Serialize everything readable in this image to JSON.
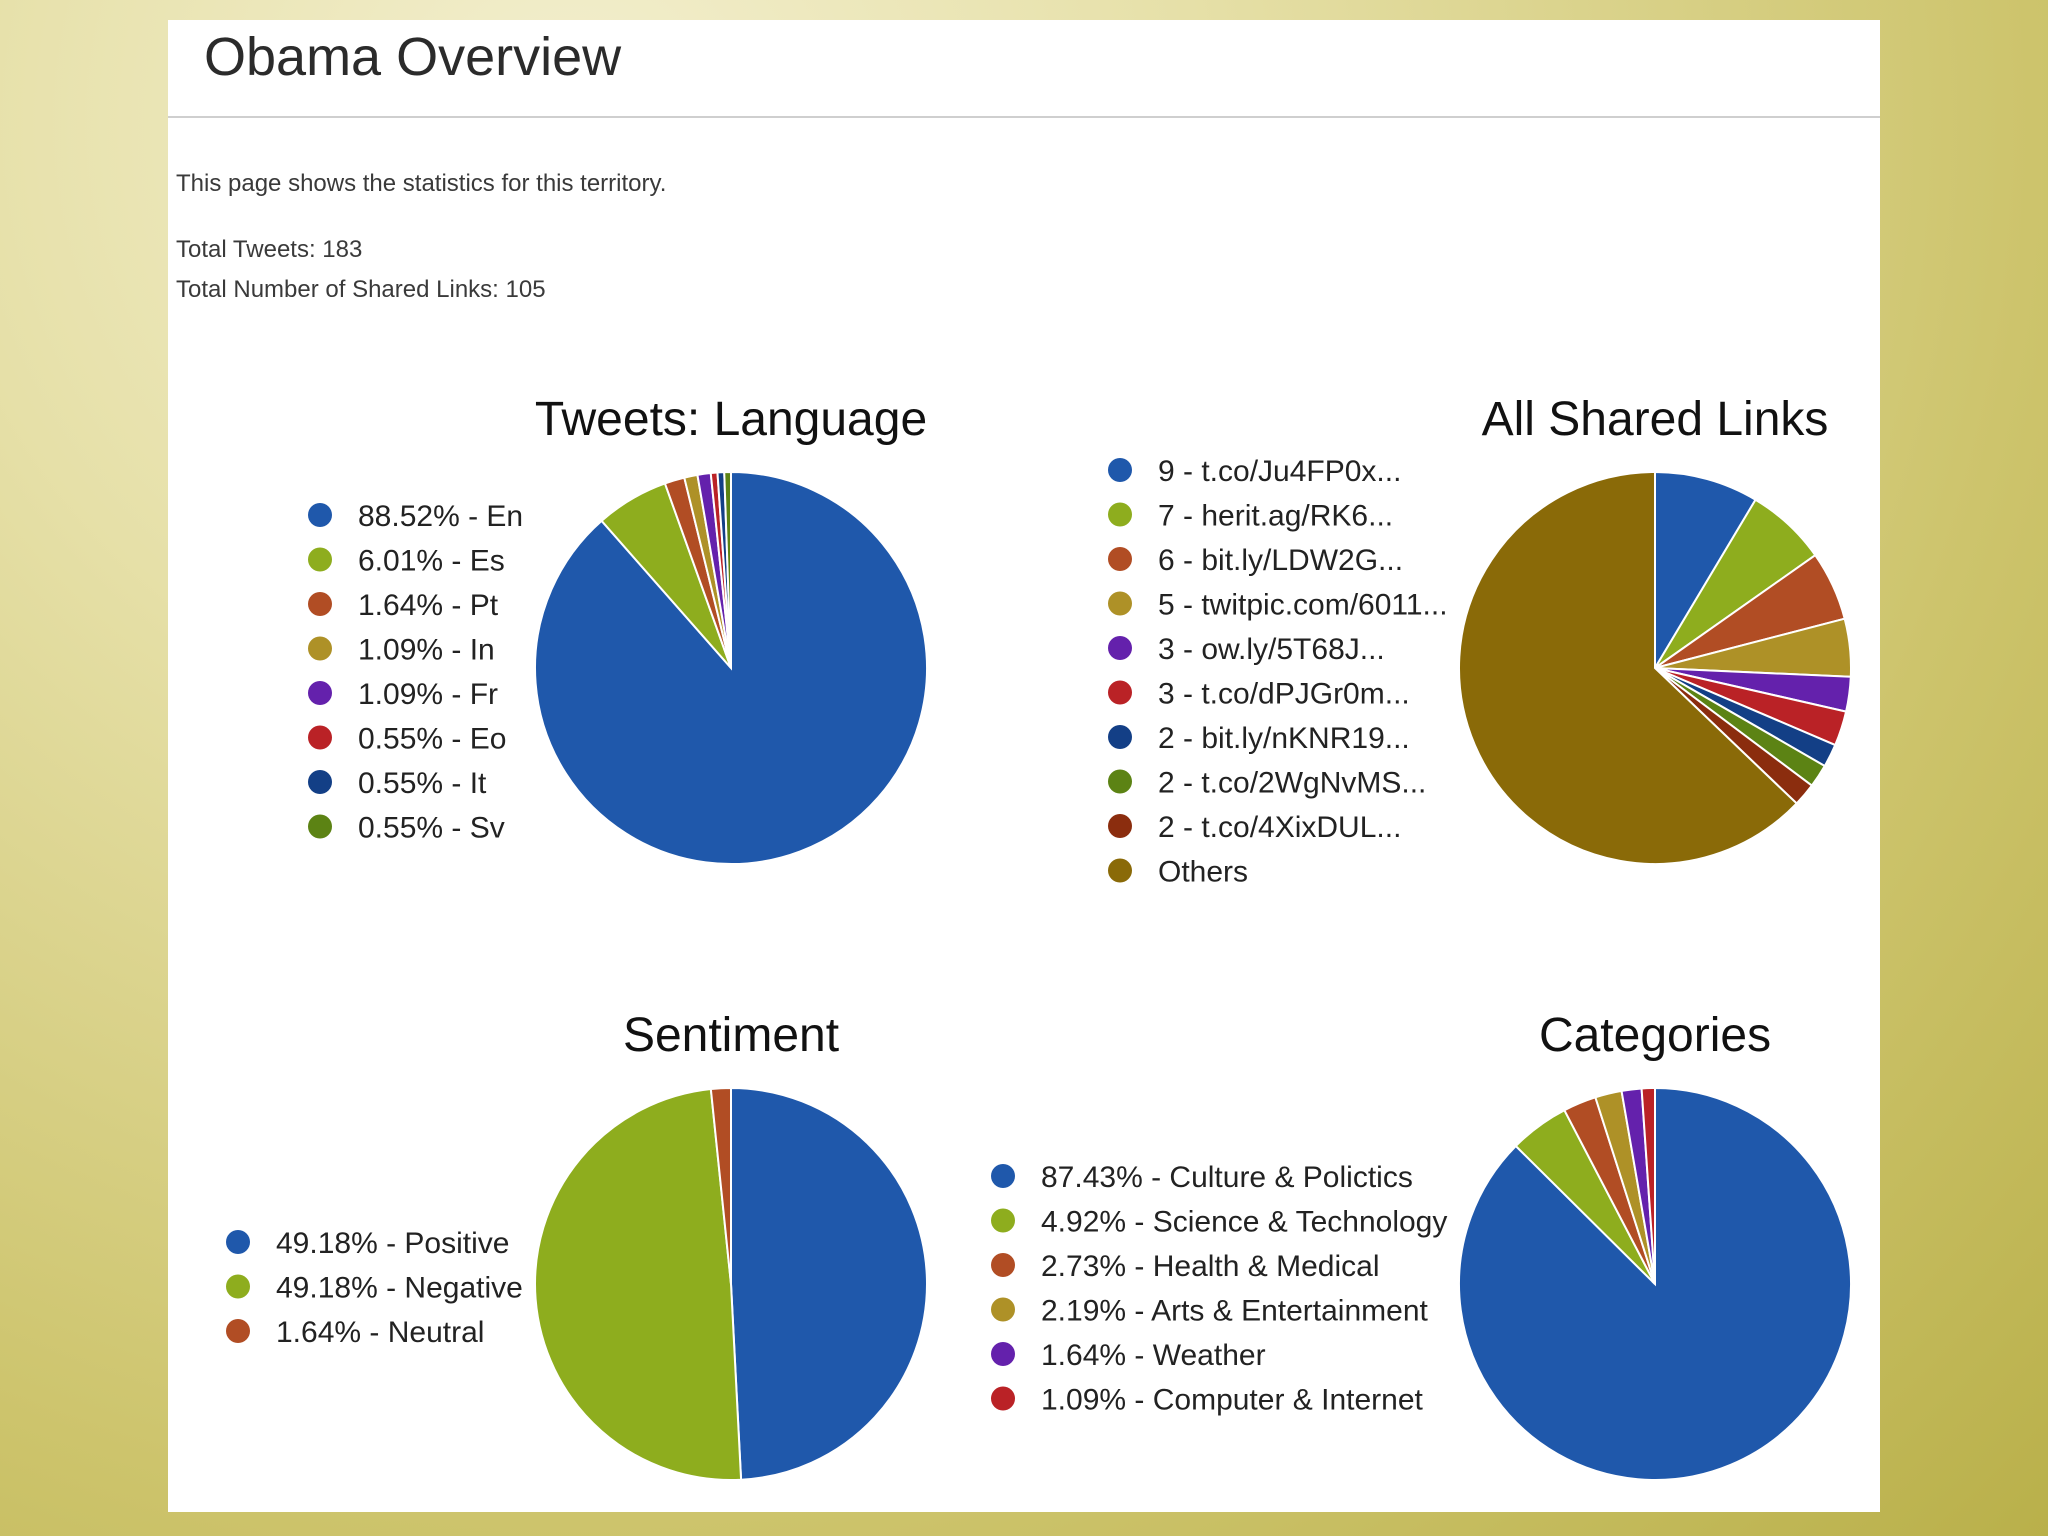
{
  "page": {
    "title": "Obama Overview",
    "intro": "This page shows the statistics for this territory.",
    "total_tweets": "Total Tweets: 183",
    "total_links": "Total Number of Shared Links: 105"
  },
  "chart_data": [
    {
      "id": "language",
      "type": "pie",
      "title": "Tweets: Language",
      "labels": [
        "88.52% - En",
        "6.01% - Es",
        "1.64% - Pt",
        "1.09% - In",
        "1.09% - Fr",
        "0.55% - Eo",
        "0.55% - It",
        "0.55% - Sv"
      ],
      "values": [
        88.52,
        6.01,
        1.64,
        1.09,
        1.09,
        0.55,
        0.55,
        0.55
      ],
      "colors": [
        "#1f58ab",
        "#8ead1e",
        "#b14d24",
        "#ae9127",
        "#6421ac",
        "#ba2226",
        "#133f86",
        "#5c8314"
      ],
      "legend": "left"
    },
    {
      "id": "links",
      "type": "pie",
      "title": "All Shared Links",
      "labels": [
        "9 - t.co/Ju4FP0x...",
        "7 - herit.ag/RK6...",
        "6 - bit.ly/LDW2G...",
        "5 - twitpic.com/6011...",
        "3 - ow.ly/5T68J...",
        "3 - t.co/dPJGr0m...",
        "2 - bit.ly/nKNR19...",
        "2 - t.co/2WgNvMS...",
        "2 - t.co/4XixDUL...",
        "Others"
      ],
      "values": [
        9,
        7,
        6,
        5,
        3,
        3,
        2,
        2,
        2,
        66
      ],
      "colors": [
        "#1f58ab",
        "#8ead1e",
        "#b14d24",
        "#ae9127",
        "#6421ac",
        "#ba2226",
        "#133f86",
        "#5c8314",
        "#8b2d0e",
        "#8a6a08"
      ],
      "legend": "left"
    },
    {
      "id": "sentiment",
      "type": "pie",
      "title": "Sentiment",
      "labels": [
        "49.18% - Positive",
        "49.18% - Negative",
        "1.64% - Neutral"
      ],
      "values": [
        49.18,
        49.18,
        1.64
      ],
      "colors": [
        "#1f58ab",
        "#8ead1e",
        "#b14d24"
      ],
      "legend": "left"
    },
    {
      "id": "categories",
      "type": "pie",
      "title": "Categories",
      "labels": [
        "87.43% - Culture & Polictics",
        "4.92% - Science & Technology",
        "2.73% - Health & Medical",
        "2.19% - Arts & Entertainment",
        "1.64% - Weather",
        "1.09% - Computer & Internet"
      ],
      "values": [
        87.43,
        4.92,
        2.73,
        2.19,
        1.64,
        1.09
      ],
      "colors": [
        "#1f58ab",
        "#8ead1e",
        "#b14d24",
        "#ae9127",
        "#6421ac",
        "#ba2226"
      ],
      "legend": "left"
    }
  ]
}
